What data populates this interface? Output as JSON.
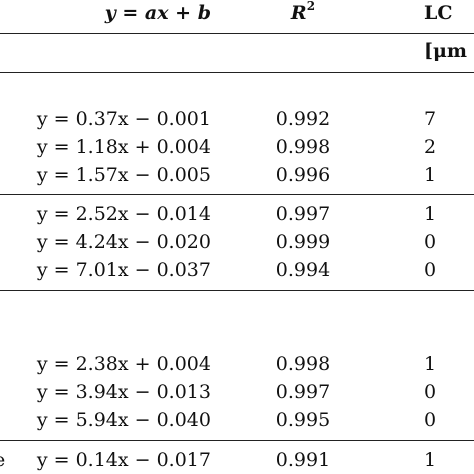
{
  "header": {
    "equation_label": "y = ax + b",
    "r2_label": "R",
    "r2_sup": "2",
    "lod_label": "LC",
    "unit_label": "[μm"
  },
  "groups": [
    {
      "rows": [
        {
          "equation": "y = 0.37x − 0.001",
          "r2": "0.992",
          "lod": "7"
        },
        {
          "equation": "y = 1.18x + 0.004",
          "r2": "0.998",
          "lod": "2"
        },
        {
          "equation": "y = 1.57x − 0.005",
          "r2": "0.996",
          "lod": "1"
        }
      ]
    },
    {
      "rows": [
        {
          "equation": "y = 2.52x − 0.014",
          "r2": "0.997",
          "lod": "1"
        },
        {
          "equation": "y = 4.24x − 0.020",
          "r2": "0.999",
          "lod": "0"
        },
        {
          "equation": "y = 7.01x − 0.037",
          "r2": "0.994",
          "lod": "0"
        }
      ]
    },
    {
      "rows": [
        {
          "equation": "y = 2.38x + 0.004",
          "r2": "0.998",
          "lod": "1"
        },
        {
          "equation": "y = 3.94x − 0.013",
          "r2": "0.997",
          "lod": "0"
        },
        {
          "equation": "y = 5.94x − 0.040",
          "r2": "0.995",
          "lod": "0"
        }
      ]
    },
    {
      "row_label": "e",
      "rows": [
        {
          "equation": "y = 0.14x − 0.017",
          "r2": "0.991",
          "lod": "1"
        }
      ]
    }
  ]
}
